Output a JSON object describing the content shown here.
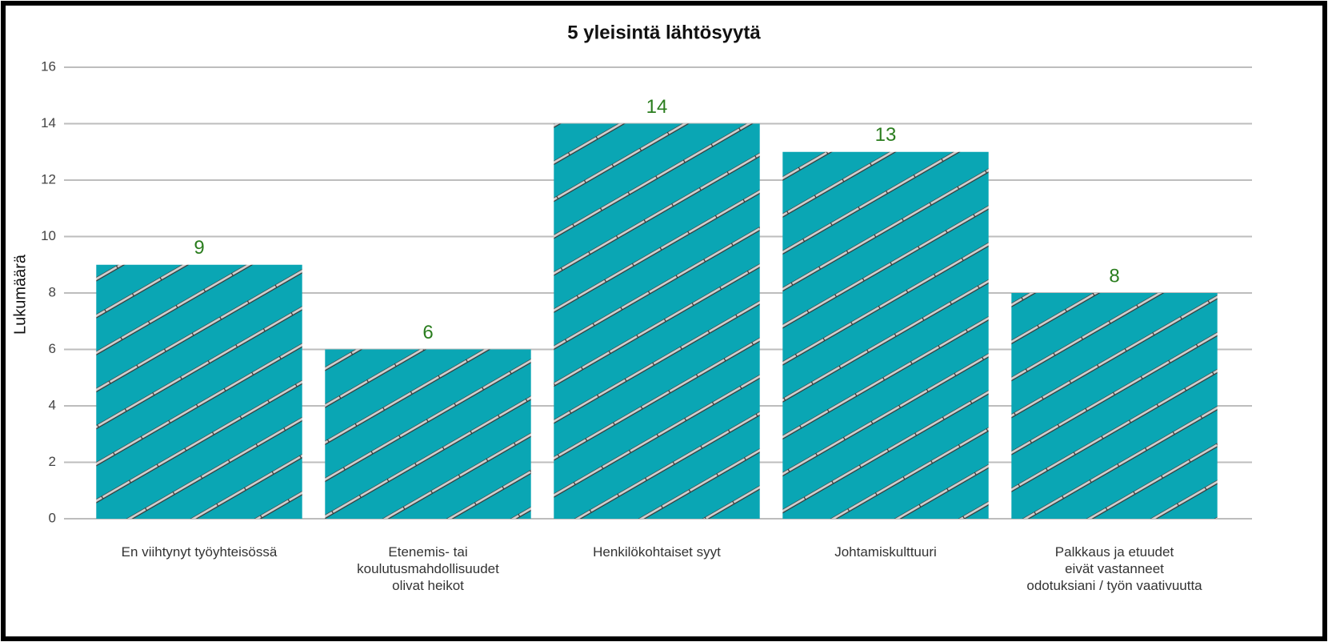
{
  "chart_data": {
    "type": "bar",
    "title": "5 yleisintä lähtösyytä",
    "y_label": "Lukumäärä",
    "categories": [
      "En viihtynyt työyhteisössä",
      "Etenemis- tai\nkoulutusmahdollisuudet\nolivat heikot",
      "Henkilökohtaiset syyt",
      "Johtamiskulttuuri",
      "Palkkaus ja etuudet\neivät vastanneet\nodotuksiani / työn vaativuutta"
    ],
    "values": [
      9,
      6,
      14,
      13,
      8
    ],
    "color": "#0aa6b4",
    "value_label_color": "#2a7d1e",
    "ylim": [
      0,
      16
    ],
    "yticks": [
      0,
      2,
      4,
      6,
      8,
      10,
      12,
      14,
      16
    ],
    "grid": true
  }
}
